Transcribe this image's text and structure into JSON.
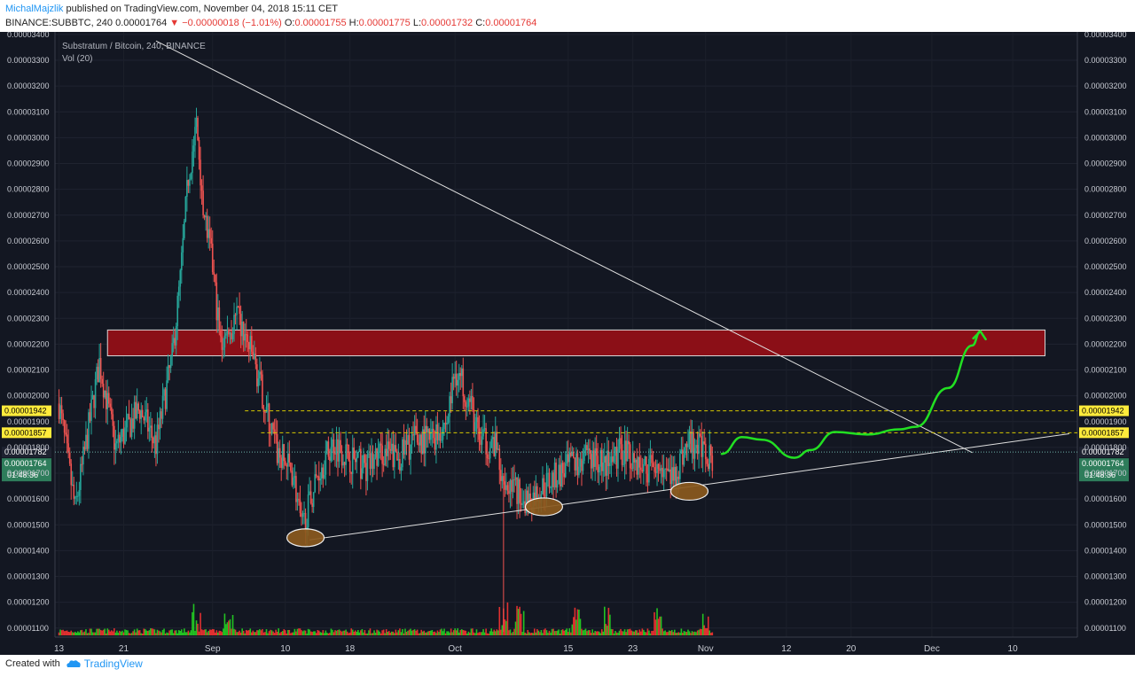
{
  "header": {
    "author": "MichalMajzlik",
    "published": "published on TradingView.com, November 04, 2018 15:11 CET",
    "symbol": "BINANCE:SUBBTC, 240",
    "last": "0.00001764",
    "change": "−0.00000018 (−1.01%)",
    "o_label": "O:",
    "o_value": "0.00001755",
    "h_label": "H:",
    "h_value": "0.00001775",
    "l_label": "L:",
    "l_value": "0.00001732",
    "c_label": "C:",
    "c_value": "0.00001764"
  },
  "legend": {
    "title": "Substratum / Bitcoin, 240, BINANCE",
    "volume": "Vol (20)"
  },
  "footer": {
    "created_with": "Created with",
    "brand": "TradingView"
  },
  "colors": {
    "background": "#131722",
    "up": "#26a69a",
    "down": "#ef5350",
    "vol_up": "#22c322",
    "vol_down": "#e03030",
    "resistance_zone": "#8b0f17",
    "projection": "#22e022",
    "level_line": "#d7c900",
    "label_yellow": "#ffeb3b",
    "label_green": "#2e7d5b",
    "ellipse": "#8b5a1e"
  },
  "chart_data": {
    "type": "candlestick",
    "title": "Substratum / Bitcoin, 240, BINANCE",
    "ylim": [
      1.065e-05,
      3.41e-05
    ],
    "y_ticks": [
      1.1e-05,
      1.2e-05,
      1.3e-05,
      1.4e-05,
      1.5e-05,
      1.6e-05,
      1.7e-05,
      1.8e-05,
      1.9e-05,
      2e-05,
      2.1e-05,
      2.2e-05,
      2.3e-05,
      2.4e-05,
      2.5e-05,
      2.6e-05,
      2.7e-05,
      2.8e-05,
      2.9e-05,
      3e-05,
      3.1e-05,
      3.2e-05,
      3.3e-05,
      3.4e-05
    ],
    "y_tick_labels": [
      "0.00001100",
      "0.00001200",
      "0.00001300",
      "0.00001400",
      "0.00001500",
      "0.00001600",
      "0.00001700",
      "0.00001800",
      "0.00001900",
      "0.00002000",
      "0.00002100",
      "0.00002200",
      "0.00002300",
      "0.00002400",
      "0.00002500",
      "0.00002600",
      "0.00002700",
      "0.00002800",
      "0.00002900",
      "0.00003000",
      "0.00003100",
      "0.00003200",
      "0.00003300",
      "0.00003400"
    ],
    "x_tick_labels": [
      "13",
      "21",
      "Sep",
      "10",
      "18",
      "Oct",
      "15",
      "23",
      "Nov",
      "12",
      "20",
      "Dec",
      "10"
    ],
    "x_tick_days": [
      0,
      8,
      19,
      28,
      36,
      49,
      63,
      71,
      80,
      90,
      98,
      108,
      118
    ],
    "x_axis_note": "x values are days from Aug 13, 2018",
    "x_range_days": [
      -0.5,
      126
    ],
    "key_prices": [
      [
        0,
        1.97e-05
      ],
      [
        2,
        1.56e-05
      ],
      [
        5,
        2.13e-05
      ],
      [
        7,
        1.8e-05
      ],
      [
        10,
        1.95e-05
      ],
      [
        12,
        1.81e-05
      ],
      [
        14,
        2.15e-05
      ],
      [
        15,
        2.45e-05
      ],
      [
        16,
        2.85e-05
      ],
      [
        17,
        3.05e-05
      ],
      [
        18,
        2.7e-05
      ],
      [
        19,
        2.5e-05
      ],
      [
        20,
        2.2e-05
      ],
      [
        22,
        2.3e-05
      ],
      [
        24,
        2.15e-05
      ],
      [
        26,
        1.9e-05
      ],
      [
        27,
        1.78e-05
      ],
      [
        29,
        1.7e-05
      ],
      [
        30,
        1.48e-05
      ],
      [
        31,
        1.58e-05
      ],
      [
        32,
        1.7e-05
      ],
      [
        34,
        1.82e-05
      ],
      [
        36,
        1.76e-05
      ],
      [
        38,
        1.72e-05
      ],
      [
        40,
        1.78e-05
      ],
      [
        42,
        1.76e-05
      ],
      [
        44,
        1.83e-05
      ],
      [
        46,
        1.83e-05
      ],
      [
        48,
        1.9e-05
      ],
      [
        49,
        2.1e-05
      ],
      [
        50,
        2.05e-05
      ],
      [
        51,
        1.95e-05
      ],
      [
        52,
        1.83e-05
      ],
      [
        54,
        1.8e-05
      ],
      [
        55,
        1.69e-05
      ],
      [
        57,
        1.62e-05
      ],
      [
        58,
        1.59e-05
      ],
      [
        60,
        1.65e-05
      ],
      [
        62,
        1.7e-05
      ],
      [
        64,
        1.74e-05
      ],
      [
        66,
        1.76e-05
      ],
      [
        68,
        1.73e-05
      ],
      [
        70,
        1.8e-05
      ],
      [
        72,
        1.72e-05
      ],
      [
        74,
        1.73e-05
      ],
      [
        76,
        1.68e-05
      ],
      [
        77,
        1.76e-05
      ],
      [
        78,
        1.82e-05
      ],
      [
        80,
        1.78e-05
      ],
      [
        81,
        1.764e-05
      ]
    ],
    "volume_spikes_days": [
      17,
      21,
      55,
      57,
      64,
      68,
      74,
      80
    ],
    "resistance_zone": {
      "from_day": 6,
      "to_day": 122,
      "low": 2.155e-05,
      "high": 2.255e-05
    },
    "horizontal_levels": [
      {
        "value": 1.942e-05,
        "label": "0.00001942",
        "from_day": 23
      },
      {
        "value": 1.857e-05,
        "label": "0.00001857",
        "from_day": 25
      }
    ],
    "last_price_line": {
      "value": 1.782e-05,
      "label": "0.00001782"
    },
    "last_price_tag": {
      "label": "0.00001764"
    },
    "countdown": "01:48:36",
    "descending_trendline": [
      [
        12,
        3.375e-05
      ],
      [
        113,
        1.78e-05
      ]
    ],
    "ascending_trendline": [
      [
        31,
        1.442e-05
      ],
      [
        125,
        1.853e-05
      ]
    ],
    "highlighted_lows": [
      [
        30.5,
        1.45e-05
      ],
      [
        60,
        1.57e-05
      ],
      [
        78,
        1.63e-05
      ]
    ],
    "projection_path": [
      [
        82,
        1.775e-05
      ],
      [
        84.5,
        1.84e-05
      ],
      [
        87,
        1.83e-05
      ],
      [
        91,
        1.76e-05
      ],
      [
        93,
        1.79e-05
      ],
      [
        96,
        1.86e-05
      ],
      [
        100,
        1.85e-05
      ],
      [
        104,
        1.87e-05
      ],
      [
        106,
        1.88e-05
      ],
      [
        110,
        2.03e-05
      ],
      [
        113,
        2.195e-05
      ],
      [
        114,
        2.25e-05
      ]
    ]
  }
}
